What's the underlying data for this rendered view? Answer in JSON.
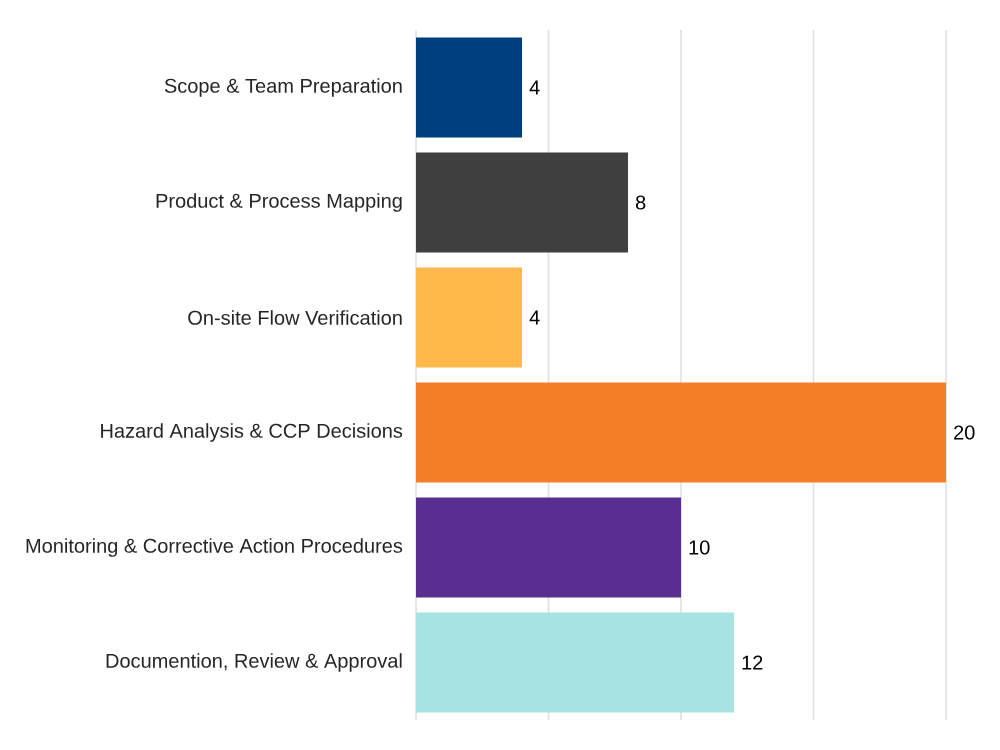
{
  "chart_data": {
    "type": "bar",
    "orientation": "horizontal",
    "categories": [
      "Scope & Team Preparation",
      "Product & Process Mapping",
      "On-site Flow Verification",
      "Hazard Analysis & CCP Decisions",
      "Monitoring & Corrective Action Procedures",
      "Documention, Review & Approval"
    ],
    "values": [
      4,
      8,
      4,
      20,
      10,
      12
    ],
    "colors": [
      "#003f7d",
      "#404040",
      "#ffb84a",
      "#f57f29",
      "#5a2d91",
      "#a8e3e3"
    ],
    "xlim": [
      0,
      20
    ],
    "xticks": [
      {
        "value": 0,
        "label": null
      },
      {
        "value": 5,
        "label": null
      },
      {
        "value": 10,
        "label": null
      },
      {
        "value": 15,
        "label": null
      },
      {
        "value": 20,
        "label": null
      }
    ],
    "grid": "x",
    "tick_labels": "y",
    "data_labels": true
  }
}
